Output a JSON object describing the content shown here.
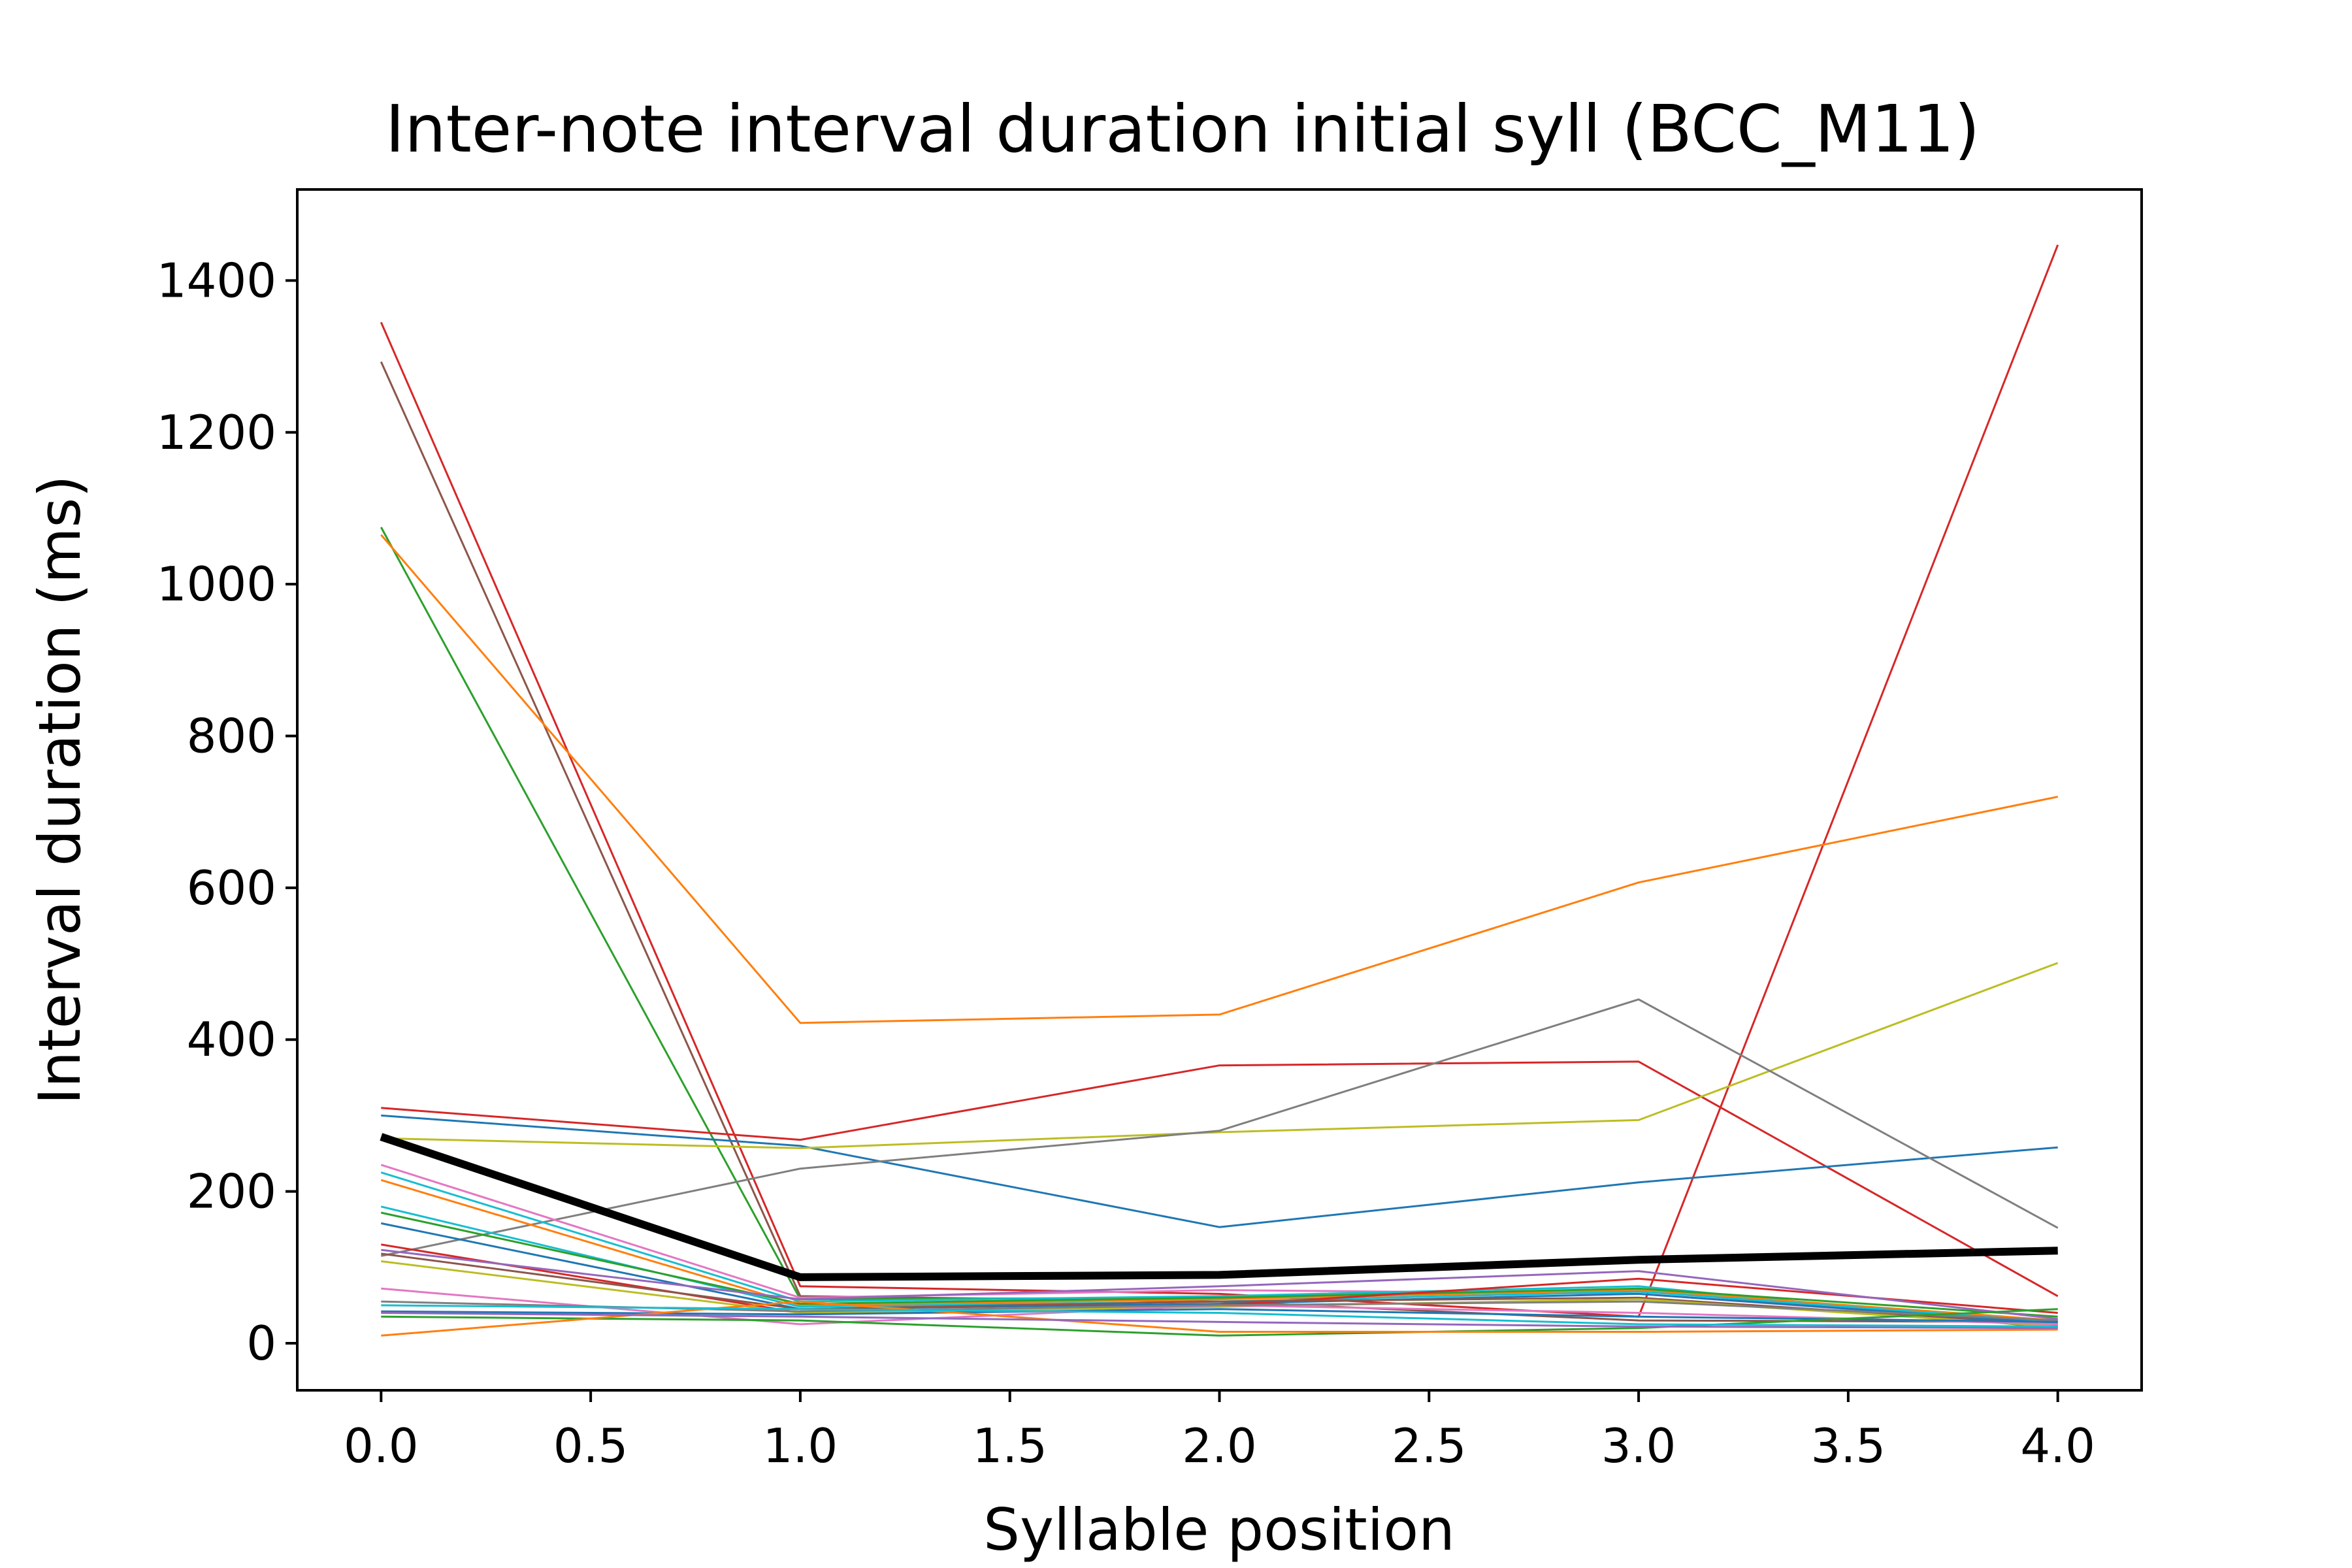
{
  "chart_data": {
    "type": "line",
    "title": "Inter-note interval duration initial syll (BCC_M11)",
    "xlabel": "Syllable position",
    "ylabel": "Interval duration (ms)",
    "xlim": [
      -0.2,
      4.2
    ],
    "ylim": [
      -62,
      1520
    ],
    "x": [
      0,
      1,
      2,
      3,
      4
    ],
    "x_ticks": [
      0.0,
      0.5,
      1.0,
      1.5,
      2.0,
      2.5,
      3.0,
      3.5,
      4.0
    ],
    "x_tick_labels": [
      "0.0",
      "0.5",
      "1.0",
      "1.5",
      "2.0",
      "2.5",
      "3.0",
      "3.5",
      "4.0"
    ],
    "y_ticks": [
      0,
      200,
      400,
      600,
      800,
      1000,
      1200,
      1400
    ],
    "y_tick_labels": [
      "0",
      "200",
      "400",
      "600",
      "800",
      "1000",
      "1200",
      "1400"
    ],
    "grid": false,
    "legend": "none",
    "series": [
      {
        "color": "#d62728",
        "values": [
          1345,
          75,
          65,
          35,
          1447
        ]
      },
      {
        "color": "#8c564b",
        "values": [
          1293,
          62,
          55,
          30,
          28
        ]
      },
      {
        "color": "#2ca02c",
        "values": [
          1075,
          58,
          60,
          70,
          20
        ]
      },
      {
        "color": "#ff7f0e",
        "values": [
          1065,
          422,
          433,
          607,
          720
        ]
      },
      {
        "color": "#d62728",
        "values": [
          310,
          268,
          366,
          371,
          62
        ]
      },
      {
        "color": "#1f77b4",
        "values": [
          300,
          260,
          153,
          212,
          258
        ]
      },
      {
        "color": "#bcbd22",
        "values": [
          270,
          257,
          278,
          294,
          501
        ]
      },
      {
        "color": "#7f7f7f",
        "values": [
          115,
          230,
          280,
          453,
          152
        ]
      },
      {
        "color": "#e377c2",
        "values": [
          235,
          60,
          70,
          65,
          25
        ]
      },
      {
        "color": "#17becf",
        "values": [
          225,
          55,
          62,
          75,
          22
        ]
      },
      {
        "color": "#ff7f0e",
        "values": [
          215,
          50,
          58,
          70,
          30
        ]
      },
      {
        "color": "#17becf",
        "values": [
          180,
          48,
          55,
          68,
          28
        ]
      },
      {
        "color": "#2ca02c",
        "values": [
          172,
          52,
          60,
          72,
          35
        ]
      },
      {
        "color": "#1f77b4",
        "values": [
          158,
          45,
          52,
          65,
          26
        ]
      },
      {
        "color": "#d62728",
        "values": [
          130,
          40,
          50,
          85,
          40
        ]
      },
      {
        "color": "#9467bd",
        "values": [
          123,
          58,
          75,
          95,
          32
        ]
      },
      {
        "color": "#8c564b",
        "values": [
          118,
          45,
          55,
          60,
          24
        ]
      },
      {
        "color": "#bcbd22",
        "values": [
          108,
          40,
          48,
          58,
          22
        ]
      },
      {
        "color": "#e377c2",
        "values": [
          72,
          25,
          50,
          40,
          25
        ]
      },
      {
        "color": "#7f7f7f",
        "values": [
          55,
          42,
          50,
          55,
          30
        ]
      },
      {
        "color": "#1f77b4",
        "values": [
          42,
          38,
          45,
          35,
          28
        ]
      },
      {
        "color": "#2ca02c",
        "values": [
          35,
          30,
          10,
          20,
          45
        ]
      },
      {
        "color": "#ff7f0e",
        "values": [
          10,
          55,
          15,
          15,
          18
        ]
      },
      {
        "color": "#9467bd",
        "values": [
          40,
          35,
          28,
          22,
          20
        ]
      },
      {
        "color": "#17becf",
        "values": [
          50,
          45,
          40,
          25,
          22
        ]
      },
      {
        "color": "#000000",
        "values": [
          272,
          87,
          90,
          110,
          122
        ],
        "bold": true
      }
    ]
  }
}
